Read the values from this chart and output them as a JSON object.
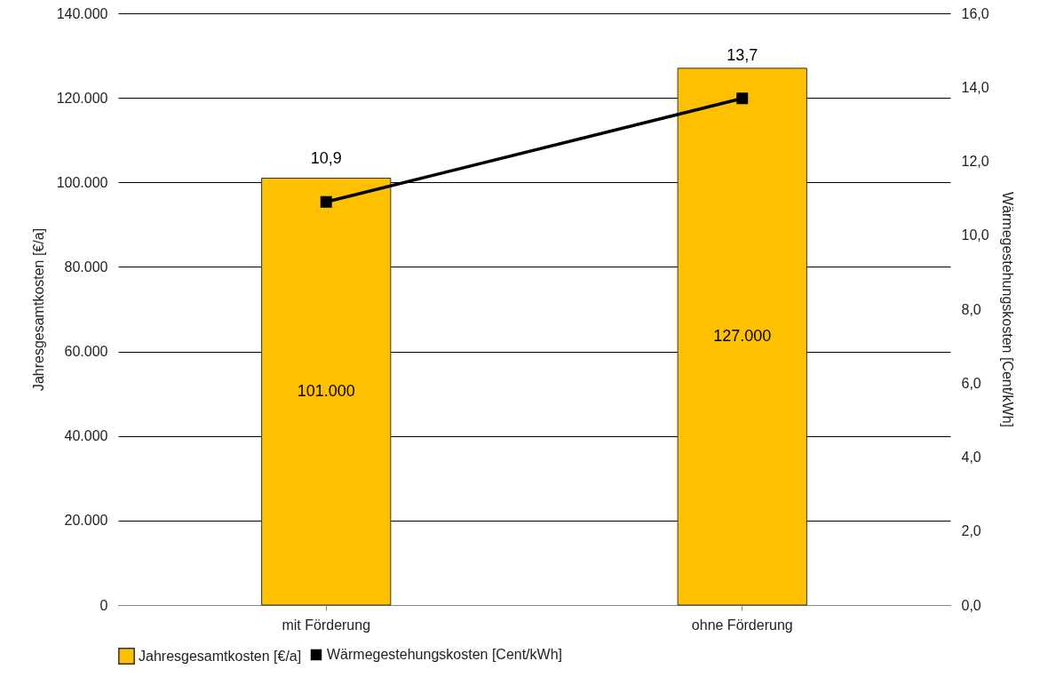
{
  "chart_data": {
    "type": "bar",
    "categories": [
      "mit Förderung",
      "ohne Förderung"
    ],
    "ylabel": "Jahresgesamtkosten [€/a]",
    "y2label": "Wärmegestehungskosten [Cent/kWh]",
    "series": [
      {
        "name": "Jahresgesamtkosten [€/a]",
        "color": "#ffc000",
        "values": [
          101000,
          127000
        ],
        "value_labels": [
          "101.000",
          "127.000"
        ]
      },
      {
        "name": "Wärmegestehungskosten [Cent/kWh]",
        "type": "line",
        "axis": "y2",
        "color": "#000000",
        "values": [
          10.9,
          13.7
        ],
        "value_labels": [
          "10,9",
          "13,7"
        ],
        "marker": "square",
        "line_style": "solid"
      }
    ],
    "ylim": [
      0,
      140000
    ],
    "yticks": [
      {
        "value": 0,
        "label": "0"
      },
      {
        "value": 20000,
        "label": "20.000"
      },
      {
        "value": 40000,
        "label": "40.000"
      },
      {
        "value": 60000,
        "label": "60.000"
      },
      {
        "value": 80000,
        "label": "80.000"
      },
      {
        "value": 100000,
        "label": "100.000"
      },
      {
        "value": 120000,
        "label": "120.000"
      },
      {
        "value": 140000,
        "label": "140.000"
      }
    ],
    "y2lim": [
      0,
      16
    ],
    "y2ticks": [
      {
        "value": 0,
        "label": "0,0"
      },
      {
        "value": 2,
        "label": "2,0"
      },
      {
        "value": 4,
        "label": "4,0"
      },
      {
        "value": 6,
        "label": "6,0"
      },
      {
        "value": 8,
        "label": "8,0"
      },
      {
        "value": 10,
        "label": "10,0"
      },
      {
        "value": 12,
        "label": "12,0"
      },
      {
        "value": 14,
        "label": "14,0"
      },
      {
        "value": 16,
        "label": "16,0"
      }
    ],
    "grid": "y",
    "legend": "bottom"
  }
}
